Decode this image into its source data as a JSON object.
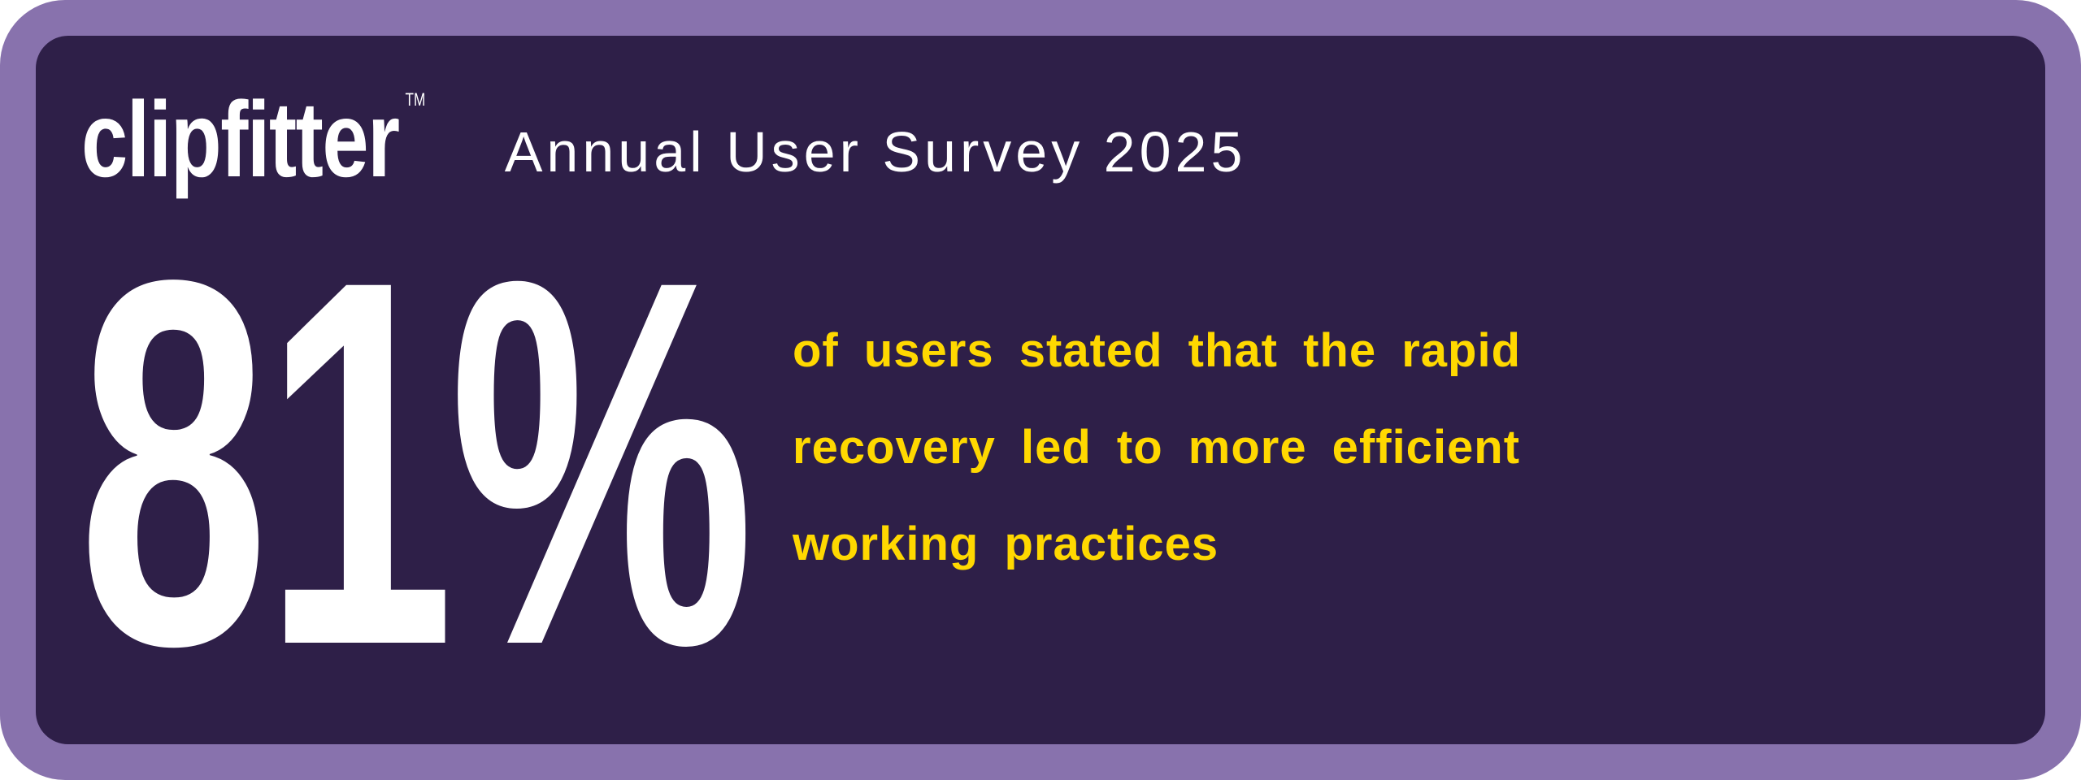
{
  "brand": {
    "logo": "clipfitter",
    "trademark": "TM"
  },
  "header": {
    "title": "Annual User Survey 2025"
  },
  "stat": {
    "value": "81%",
    "statement": "of users stated that the rapid recovery led to more efficient working practices"
  },
  "colors": {
    "border": "#8872ad",
    "background": "#2e1f48",
    "accent": "#ffd800",
    "text": "#ffffff"
  }
}
